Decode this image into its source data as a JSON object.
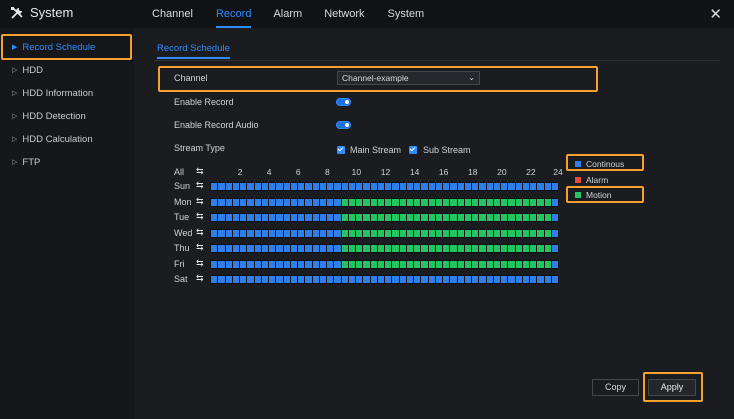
{
  "header": {
    "app_title": "System",
    "tabs": [
      "Channel",
      "Record",
      "Alarm",
      "Network",
      "System"
    ],
    "active_tab": "Record"
  },
  "sidebar": {
    "items": [
      {
        "label": "Record Schedule",
        "active": true
      },
      {
        "label": "HDD",
        "active": false
      },
      {
        "label": "HDD Information",
        "active": false
      },
      {
        "label": "HDD Detection",
        "active": false
      },
      {
        "label": "HDD Calculation",
        "active": false
      },
      {
        "label": "FTP",
        "active": false
      }
    ]
  },
  "main": {
    "sub_tab": "Record Schedule",
    "channel_label": "Channel",
    "channel_value": "Channel-example",
    "enable_record_label": "Enable Record",
    "enable_record": true,
    "enable_record_audio_label": "Enable Record Audio",
    "enable_record_audio": true,
    "stream_type_label": "Stream Type",
    "main_stream_label": "Main Stream",
    "main_stream_checked": true,
    "sub_stream_label": "Sub Stream",
    "sub_stream_checked": true
  },
  "schedule": {
    "all_label": "All",
    "hour_labels": [
      "2",
      "4",
      "6",
      "8",
      "10",
      "12",
      "14",
      "16",
      "18",
      "20",
      "22",
      "24"
    ],
    "days": [
      {
        "label": "Sun",
        "pattern": "continuous_all"
      },
      {
        "label": "Mon",
        "pattern": "continuous_then_motion"
      },
      {
        "label": "Tue",
        "pattern": "continuous_then_motion"
      },
      {
        "label": "Wed",
        "pattern": "continuous_then_motion"
      },
      {
        "label": "Thu",
        "pattern": "continuous_then_motion"
      },
      {
        "label": "Fri",
        "pattern": "continuous_then_motion"
      },
      {
        "label": "Sat",
        "pattern": "continuous_all"
      }
    ],
    "motion_start_hour": 9,
    "motion_end_hour": 23.5
  },
  "legend": [
    {
      "label": "Continous",
      "color": "#2f7fe8"
    },
    {
      "label": "Alarm",
      "color": "#e14a3c"
    },
    {
      "label": "Motion",
      "color": "#25c463"
    }
  ],
  "buttons": {
    "copy": "Copy",
    "apply": "Apply"
  },
  "colors": {
    "accent": "#2f8cff",
    "highlight": "#f5a030"
  }
}
